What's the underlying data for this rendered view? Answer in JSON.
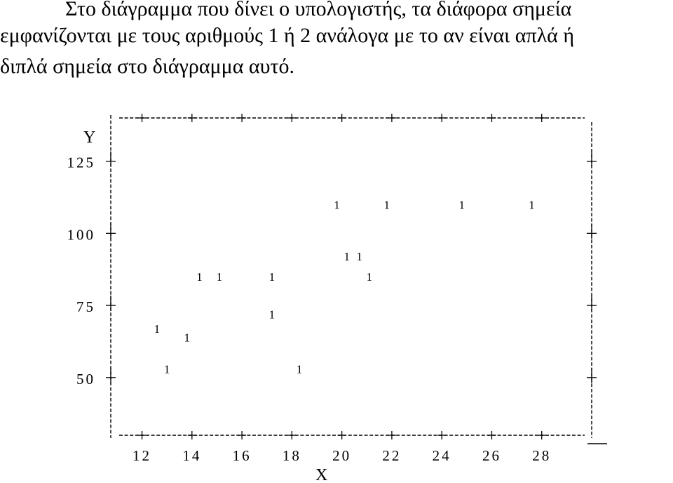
{
  "text": {
    "line1": "Στο διάγραμμα που δίνει ο υπολογιστής, τα διάφορα σημεία",
    "line2": "εμφανίζονται με τους αριθμούς 1 ή 2 ανάλογα με το αν είναι απλά ή",
    "line3": "διπλά σημεία στο διάγραμμα αυτό."
  },
  "chart_data": {
    "type": "scatter",
    "title": "",
    "xlabel": "X",
    "ylabel": "Y",
    "xlim": [
      10.75,
      30.0
    ],
    "ylim": [
      30,
      140
    ],
    "xticks": [
      "12",
      "14",
      "16",
      "18",
      "20",
      "22",
      "24",
      "26",
      "28"
    ],
    "yticks": [
      "125",
      "100",
      "75",
      "50"
    ],
    "point_label": "1",
    "points": [
      {
        "x": 12.6,
        "y": 67
      },
      {
        "x": 13.0,
        "y": 53
      },
      {
        "x": 13.8,
        "y": 64
      },
      {
        "x": 14.3,
        "y": 85
      },
      {
        "x": 15.1,
        "y": 85
      },
      {
        "x": 17.2,
        "y": 85
      },
      {
        "x": 17.2,
        "y": 72
      },
      {
        "x": 18.3,
        "y": 53
      },
      {
        "x": 19.8,
        "y": 110
      },
      {
        "x": 20.2,
        "y": 92
      },
      {
        "x": 20.7,
        "y": 92
      },
      {
        "x": 21.1,
        "y": 85
      },
      {
        "x": 21.8,
        "y": 110
      },
      {
        "x": 24.8,
        "y": 110
      },
      {
        "x": 27.6,
        "y": 110
      }
    ]
  }
}
